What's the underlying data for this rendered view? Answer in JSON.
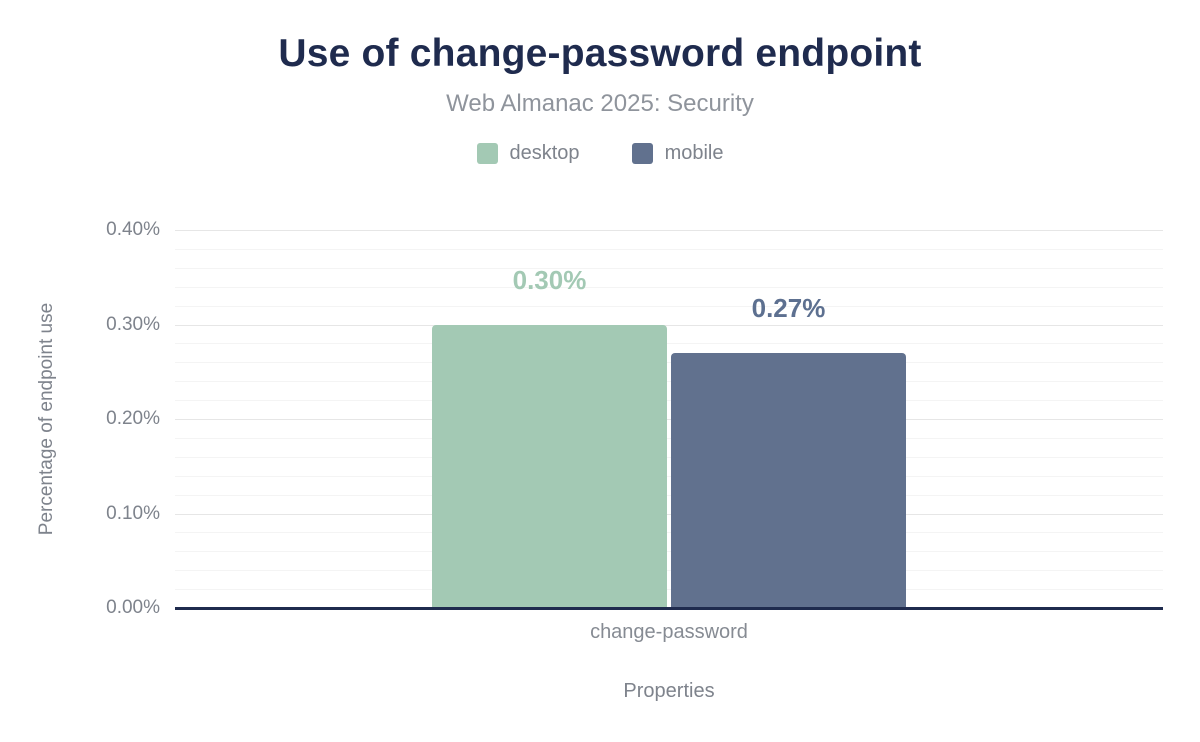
{
  "chart_data": {
    "type": "bar",
    "title": "Use of change-password endpoint",
    "subtitle": "Web Almanac 2025: Security",
    "categories": [
      "change-password"
    ],
    "series": [
      {
        "name": "desktop",
        "values": [
          0.3
        ],
        "value_labels": [
          "0.30%"
        ],
        "color": "#a3c9b4",
        "label_color": "#a3c9b4"
      },
      {
        "name": "mobile",
        "values": [
          0.27
        ],
        "value_labels": [
          "0.27%"
        ],
        "color": "#61718e",
        "label_color": "#5d7090"
      }
    ],
    "xlabel": "Properties",
    "ylabel": "Percentage of endpoint use",
    "ylim": [
      0,
      0.4
    ],
    "yticks": [
      0,
      0.1,
      0.2,
      0.3,
      0.4
    ],
    "ytick_labels": [
      "0.00%",
      "0.10%",
      "0.20%",
      "0.30%",
      "0.40%"
    ],
    "minor_tick_step": 0.02,
    "grid": true,
    "legend_position": "top"
  },
  "colors": {
    "navy": "#1f2b4e",
    "gray_text": "#7e838c",
    "subtitle_gray": "#8f949c",
    "grid_major": "#e6e6e6",
    "grid_minor": "#f4f4f4"
  }
}
